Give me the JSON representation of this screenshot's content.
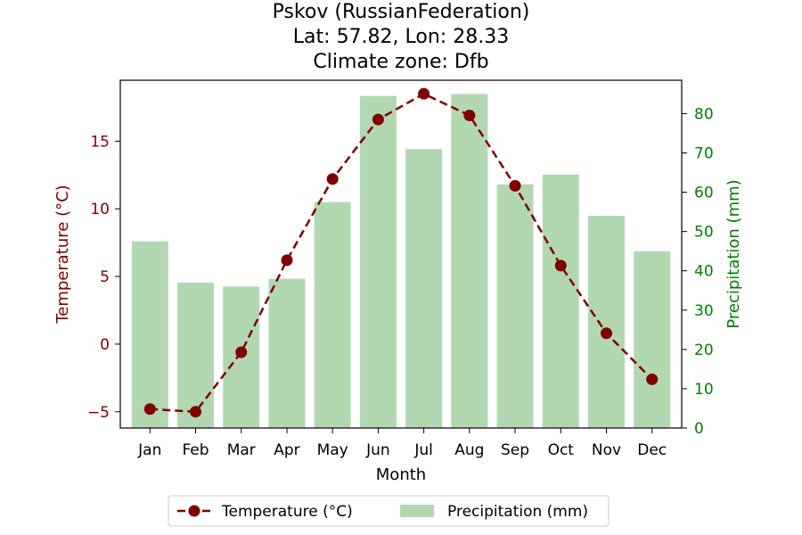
{
  "chart_data": {
    "type": "bar+line",
    "title_lines": [
      "Pskov (RussianFederation)",
      "Lat: 57.82, Lon: 28.33",
      "Climate zone: Dfb"
    ],
    "xlabel": "Month",
    "ylabel_left": "Temperature (°C)",
    "ylabel_right": "Precipitation (mm)",
    "categories": [
      "Jan",
      "Feb",
      "Mar",
      "Apr",
      "May",
      "Jun",
      "Jul",
      "Aug",
      "Sep",
      "Oct",
      "Nov",
      "Dec"
    ],
    "series": [
      {
        "name": "Temperature (°C)",
        "axis": "left",
        "kind": "line",
        "values": [
          -4.8,
          -5.0,
          -0.6,
          6.2,
          12.2,
          16.6,
          18.5,
          16.9,
          11.7,
          5.8,
          0.8,
          -2.6
        ]
      },
      {
        "name": "Precipitation (mm)",
        "axis": "right",
        "kind": "bar",
        "values": [
          47.5,
          37,
          36,
          38,
          57.5,
          84.5,
          71,
          85,
          62,
          64.5,
          54,
          45
        ]
      }
    ],
    "ylim_left": [
      -6.2,
      19.5
    ],
    "ylim_right": [
      0,
      88.5
    ],
    "yticks_left": [
      -5,
      0,
      5,
      10,
      15
    ],
    "yticks_right": [
      0,
      10,
      20,
      30,
      40,
      50,
      60,
      70,
      80
    ],
    "grid": false,
    "legend": "bottom-center",
    "colors": {
      "temperature": "#800000",
      "precipitation": "#b2d8b2",
      "right_axis": "#008000",
      "left_axis": "#800000"
    }
  }
}
